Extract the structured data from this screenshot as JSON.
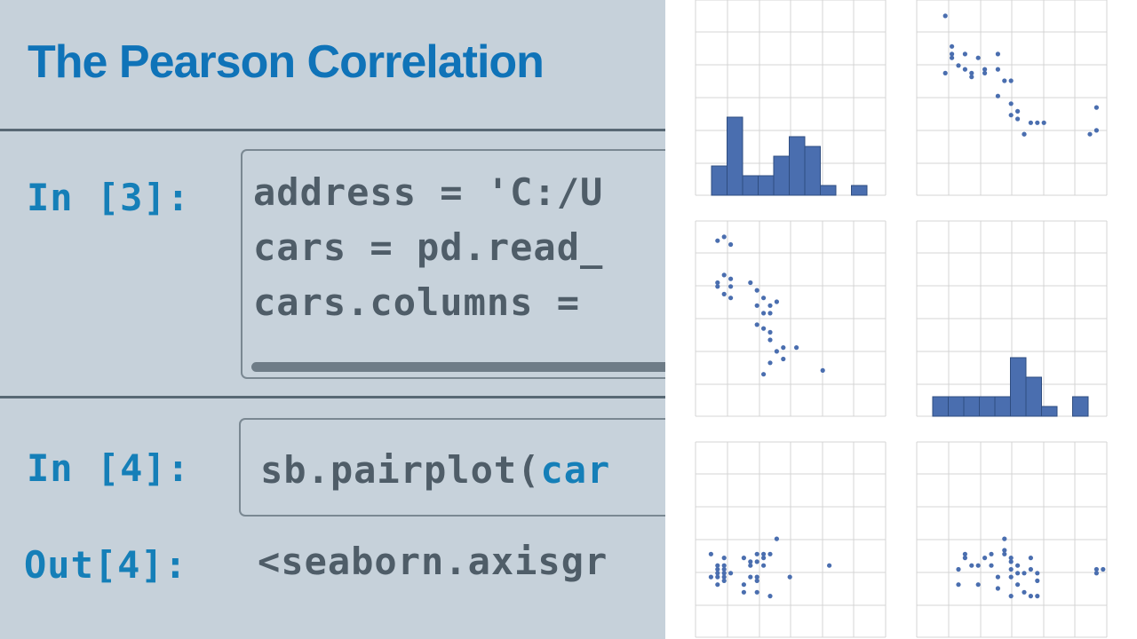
{
  "slide": {
    "title": "The Pearson Correlation"
  },
  "notebook": {
    "cell3": {
      "prompt": "In [3]:",
      "lines": [
        "address = 'C:/U",
        "cars = pd.read_",
        "cars.columns = "
      ]
    },
    "cell4": {
      "prompt": "In [4]:",
      "code_prefix": "sb.pairplot(",
      "code_suffix": "car"
    },
    "out4": {
      "prompt": "Out[4]:",
      "text": "<seaborn.axisgr"
    }
  },
  "colors": {
    "background": "#c6d1da",
    "title_blue": "#0f73b8",
    "prompt_blue": "#157fb8",
    "code_gray": "#4f5d68",
    "mark_blue": "#4a6eaf"
  },
  "chart_data": {
    "type": "scatter",
    "description_type": "pairplot",
    "grid": true,
    "panels": [
      {
        "kind": "hist",
        "row": 0,
        "col": 0,
        "values": [
          3,
          8,
          2,
          2,
          4,
          6,
          5,
          1,
          0,
          1
        ]
      },
      {
        "kind": "scatter",
        "row": 0,
        "col": 1,
        "points": [
          [
            3,
            47
          ],
          [
            4,
            39
          ],
          [
            4,
            37
          ],
          [
            4,
            36
          ],
          [
            6,
            37
          ],
          [
            5,
            34
          ],
          [
            3,
            32
          ],
          [
            8,
            36
          ],
          [
            6,
            33
          ],
          [
            7,
            32
          ],
          [
            7,
            31
          ],
          [
            9,
            32
          ],
          [
            9,
            33
          ],
          [
            11,
            37
          ],
          [
            11,
            33
          ],
          [
            12,
            30
          ],
          [
            11,
            26
          ],
          [
            13,
            30
          ],
          [
            13,
            24
          ],
          [
            14,
            20
          ],
          [
            13,
            21
          ],
          [
            14,
            22
          ],
          [
            15,
            16
          ],
          [
            15,
            16
          ],
          [
            16,
            19
          ],
          [
            17,
            19
          ],
          [
            18,
            19
          ],
          [
            26,
            23
          ],
          [
            25,
            16
          ],
          [
            26,
            17
          ]
        ]
      },
      {
        "kind": "scatter",
        "row": 1,
        "col": 0,
        "points": [
          [
            3,
            47
          ],
          [
            2,
            46
          ],
          [
            4,
            45
          ],
          [
            3,
            37
          ],
          [
            4,
            36
          ],
          [
            2,
            34
          ],
          [
            2,
            35
          ],
          [
            4,
            34
          ],
          [
            3,
            32
          ],
          [
            4,
            31
          ],
          [
            7,
            35
          ],
          [
            8,
            33
          ],
          [
            9,
            31
          ],
          [
            8,
            29
          ],
          [
            9,
            27
          ],
          [
            10,
            29
          ],
          [
            10,
            27
          ],
          [
            11,
            30
          ],
          [
            8,
            24
          ],
          [
            9,
            23
          ],
          [
            10,
            22
          ],
          [
            10,
            20
          ],
          [
            11,
            17
          ],
          [
            10,
            14
          ],
          [
            12,
            15
          ],
          [
            12,
            18
          ],
          [
            14,
            18
          ],
          [
            9,
            11
          ],
          [
            18,
            12
          ]
        ]
      },
      {
        "kind": "hist",
        "row": 1,
        "col": 1,
        "values": [
          2,
          2,
          2,
          2,
          2,
          6,
          4,
          1,
          0,
          2
        ]
      },
      {
        "kind": "scatter",
        "row": 2,
        "col": 0,
        "points": [
          [
            2,
            6
          ],
          [
            3,
            6
          ],
          [
            2,
            5
          ],
          [
            3,
            5
          ],
          [
            2,
            4
          ],
          [
            3,
            4
          ],
          [
            3,
            3
          ],
          [
            4,
            4
          ],
          [
            2,
            3
          ],
          [
            1,
            3
          ],
          [
            3,
            2
          ],
          [
            2,
            1
          ],
          [
            1,
            9
          ],
          [
            3,
            8
          ],
          [
            6,
            8
          ],
          [
            7,
            7
          ],
          [
            7,
            6
          ],
          [
            8,
            7
          ],
          [
            9,
            8
          ],
          [
            8,
            9
          ],
          [
            9,
            9
          ],
          [
            10,
            9
          ],
          [
            9,
            6
          ],
          [
            7,
            3
          ],
          [
            8,
            3
          ],
          [
            8,
            2
          ],
          [
            6,
            1
          ],
          [
            6,
            -1
          ],
          [
            10,
            -2
          ],
          [
            13,
            3
          ],
          [
            11,
            13
          ],
          [
            19,
            6
          ],
          [
            8,
            -1
          ]
        ]
      },
      {
        "kind": "scatter",
        "row": 2,
        "col": 1,
        "points": [
          [
            5,
            1
          ],
          [
            5,
            5
          ],
          [
            6,
            8
          ],
          [
            6,
            9
          ],
          [
            7,
            6
          ],
          [
            8,
            6
          ],
          [
            9,
            8
          ],
          [
            10,
            9
          ],
          [
            10,
            6
          ],
          [
            11,
            3
          ],
          [
            12,
            10
          ],
          [
            12,
            9
          ],
          [
            13,
            8
          ],
          [
            13,
            7
          ],
          [
            13,
            5
          ],
          [
            13,
            3
          ],
          [
            14,
            4
          ],
          [
            14,
            6
          ],
          [
            15,
            4
          ],
          [
            16,
            5
          ],
          [
            14,
            1
          ],
          [
            15,
            -1
          ],
          [
            17,
            2
          ],
          [
            13,
            -2
          ],
          [
            16,
            -2
          ],
          [
            12,
            13
          ],
          [
            16,
            8
          ],
          [
            17,
            4
          ],
          [
            26,
            5
          ],
          [
            27,
            5
          ],
          [
            26,
            4
          ],
          [
            11,
            0
          ],
          [
            8,
            1
          ],
          [
            17,
            -2
          ]
        ]
      }
    ]
  }
}
